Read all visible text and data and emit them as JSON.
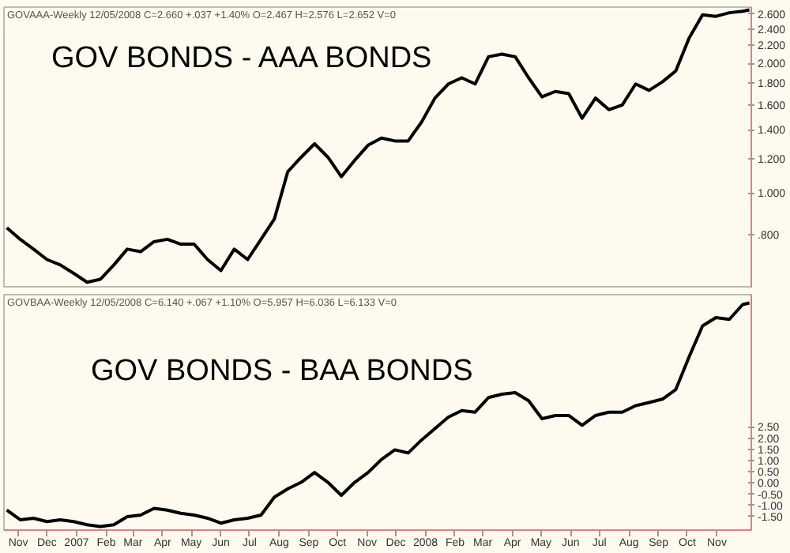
{
  "chart_data": [
    {
      "type": "line",
      "title": "GOV BONDS - AAA BONDS",
      "annotations": [
        "GOVAAA-Weekly 12/05/2008 C=2.660 +.037 +1.40% O=2.467 H=2.576 L=2.652 V=0"
      ],
      "log": "y",
      "tick_labels": "y",
      "grid": false,
      "marker": "none",
      "line_style": "solid",
      "x": [
        "2006-10-20",
        "2006-11-03",
        "2006-11-17",
        "2006-12-01",
        "2006-12-15",
        "2006-12-29",
        "2007-01-12",
        "2007-01-26",
        "2007-02-09",
        "2007-02-23",
        "2007-03-09",
        "2007-03-23",
        "2007-04-06",
        "2007-04-20",
        "2007-05-04",
        "2007-05-18",
        "2007-06-01",
        "2007-06-15",
        "2007-06-29",
        "2007-07-13",
        "2007-07-27",
        "2007-08-10",
        "2007-08-24",
        "2007-09-07",
        "2007-09-21",
        "2007-10-05",
        "2007-10-19",
        "2007-11-02",
        "2007-11-16",
        "2007-11-30",
        "2007-12-14",
        "2007-12-28",
        "2008-01-11",
        "2008-01-25",
        "2008-02-08",
        "2008-02-22",
        "2008-03-07",
        "2008-03-21",
        "2008-04-04",
        "2008-04-18",
        "2008-05-02",
        "2008-05-16",
        "2008-05-30",
        "2008-06-13",
        "2008-06-27",
        "2008-07-11",
        "2008-07-25",
        "2008-08-08",
        "2008-08-22",
        "2008-09-05",
        "2008-09-19",
        "2008-10-03",
        "2008-10-17",
        "2008-10-31",
        "2008-11-14",
        "2008-11-28",
        "2008-12-05"
      ],
      "series": [
        {
          "color": "#000000",
          "values": [
            0.83,
            0.78,
            0.74,
            0.7,
            0.68,
            0.65,
            0.62,
            0.63,
            0.68,
            0.74,
            0.73,
            0.77,
            0.78,
            0.76,
            0.76,
            0.7,
            0.66,
            0.74,
            0.7,
            0.78,
            0.87,
            1.12,
            1.21,
            1.3,
            1.21,
            1.09,
            1.19,
            1.29,
            1.34,
            1.32,
            1.32,
            1.46,
            1.66,
            1.79,
            1.85,
            1.79,
            2.07,
            2.1,
            2.07,
            1.85,
            1.67,
            1.72,
            1.7,
            1.49,
            1.66,
            1.56,
            1.6,
            1.79,
            1.73,
            1.81,
            1.92,
            2.29,
            2.59,
            2.57,
            2.62,
            2.64,
            2.66
          ]
        }
      ],
      "xlim": [
        "2006-10-17",
        "2008-12-07"
      ],
      "ylim": [
        0.6,
        2.7
      ],
      "yticks": [
        {
          "value": 0.8,
          "label": ".800"
        },
        {
          "value": 1.0,
          "label": "1.000"
        },
        {
          "value": 1.2,
          "label": "1.200"
        },
        {
          "value": 1.4,
          "label": "1.400"
        },
        {
          "value": 1.6,
          "label": "1.600"
        },
        {
          "value": 1.8,
          "label": "1.800"
        },
        {
          "value": 2.0,
          "label": "2.000"
        },
        {
          "value": 2.2,
          "label": "2.200"
        },
        {
          "value": 2.4,
          "label": "2.400"
        },
        {
          "value": 2.6,
          "label": "2.600"
        }
      ]
    },
    {
      "type": "line",
      "title": "GOV BONDS - BAA BONDS",
      "annotations": [
        "GOVBAA-Weekly 12/05/2008 C=6.140 +.067 +1.10% O=5.957 H=6.036 L=6.133 V=0"
      ],
      "grid": false,
      "marker": "none",
      "line_style": "solid",
      "x": [
        "2006-10-20",
        "2006-11-03",
        "2006-11-17",
        "2006-12-01",
        "2006-12-15",
        "2006-12-29",
        "2007-01-12",
        "2007-01-26",
        "2007-02-09",
        "2007-02-23",
        "2007-03-09",
        "2007-03-23",
        "2007-04-06",
        "2007-04-20",
        "2007-05-04",
        "2007-05-18",
        "2007-06-01",
        "2007-06-15",
        "2007-06-29",
        "2007-07-13",
        "2007-07-27",
        "2007-08-10",
        "2007-08-24",
        "2007-09-07",
        "2007-09-21",
        "2007-10-05",
        "2007-10-19",
        "2007-11-02",
        "2007-11-16",
        "2007-11-30",
        "2007-12-14",
        "2007-12-28",
        "2008-01-11",
        "2008-01-25",
        "2008-02-08",
        "2008-02-22",
        "2008-03-07",
        "2008-03-21",
        "2008-04-04",
        "2008-04-18",
        "2008-05-02",
        "2008-05-16",
        "2008-05-30",
        "2008-06-13",
        "2008-06-27",
        "2008-07-11",
        "2008-07-25",
        "2008-08-08",
        "2008-08-22",
        "2008-09-05",
        "2008-09-19",
        "2008-10-03",
        "2008-10-17",
        "2008-10-31",
        "2008-11-14",
        "2008-11-28",
        "2008-12-05"
      ],
      "series": [
        {
          "color": "#000000",
          "values": [
            -1.21,
            -1.64,
            -1.57,
            -1.72,
            -1.64,
            -1.72,
            -1.86,
            -1.94,
            -1.86,
            -1.5,
            -1.43,
            -1.13,
            -1.21,
            -1.35,
            -1.43,
            -1.57,
            -1.79,
            -1.64,
            -1.57,
            -1.43,
            -0.63,
            -0.26,
            0.03,
            0.47,
            0.03,
            -0.55,
            0.03,
            0.47,
            1.05,
            1.48,
            1.34,
            1.92,
            2.43,
            2.94,
            3.23,
            3.16,
            3.81,
            3.96,
            4.03,
            3.67,
            2.87,
            3.01,
            3.01,
            2.57,
            3.01,
            3.16,
            3.16,
            3.45,
            3.59,
            3.74,
            4.17,
            5.63,
            7.01,
            7.38,
            7.3,
            7.96,
            8.03
          ]
        }
      ],
      "xlim": [
        "2006-10-17",
        "2008-12-07"
      ],
      "xticks": [
        {
          "value": "2006-11-01",
          "label": "Nov"
        },
        {
          "value": "2006-12-01",
          "label": "Dec"
        },
        {
          "value": "2007-01-01",
          "label": "2007"
        },
        {
          "value": "2007-02-01",
          "label": "Feb"
        },
        {
          "value": "2007-03-01",
          "label": "Mar"
        },
        {
          "value": "2007-04-01",
          "label": "Apr"
        },
        {
          "value": "2007-05-01",
          "label": "May"
        },
        {
          "value": "2007-06-01",
          "label": "Jun"
        },
        {
          "value": "2007-07-01",
          "label": "Jul"
        },
        {
          "value": "2007-08-01",
          "label": "Aug"
        },
        {
          "value": "2007-09-01",
          "label": "Sep"
        },
        {
          "value": "2007-10-01",
          "label": "Oct"
        },
        {
          "value": "2007-11-01",
          "label": "Nov"
        },
        {
          "value": "2007-12-01",
          "label": "Dec"
        },
        {
          "value": "2008-01-01",
          "label": "2008"
        },
        {
          "value": "2008-02-01",
          "label": "Feb"
        },
        {
          "value": "2008-03-01",
          "label": "Mar"
        },
        {
          "value": "2008-04-01",
          "label": "Apr"
        },
        {
          "value": "2008-05-01",
          "label": "May"
        },
        {
          "value": "2008-06-01",
          "label": "Jun"
        },
        {
          "value": "2008-07-01",
          "label": "Jul"
        },
        {
          "value": "2008-08-01",
          "label": "Aug"
        },
        {
          "value": "2008-09-01",
          "label": "Sep"
        },
        {
          "value": "2008-10-01",
          "label": "Oct"
        },
        {
          "value": "2008-11-01",
          "label": "Nov"
        }
      ],
      "ylim": [
        -2.1,
        8.4
      ],
      "yticks": [
        {
          "value": -1.5,
          "label": "-1.50"
        },
        {
          "value": -1.0,
          "label": "-1.00"
        },
        {
          "value": -0.5,
          "label": "-0.50"
        },
        {
          "value": 0,
          "label": "0.00"
        },
        {
          "value": 0.5,
          "label": "0.50"
        },
        {
          "value": 1.0,
          "label": "1.00"
        },
        {
          "value": 1.5,
          "label": "1.50"
        },
        {
          "value": 2.0,
          "label": "2.00"
        },
        {
          "value": 2.5,
          "label": "2.50"
        }
      ]
    }
  ]
}
